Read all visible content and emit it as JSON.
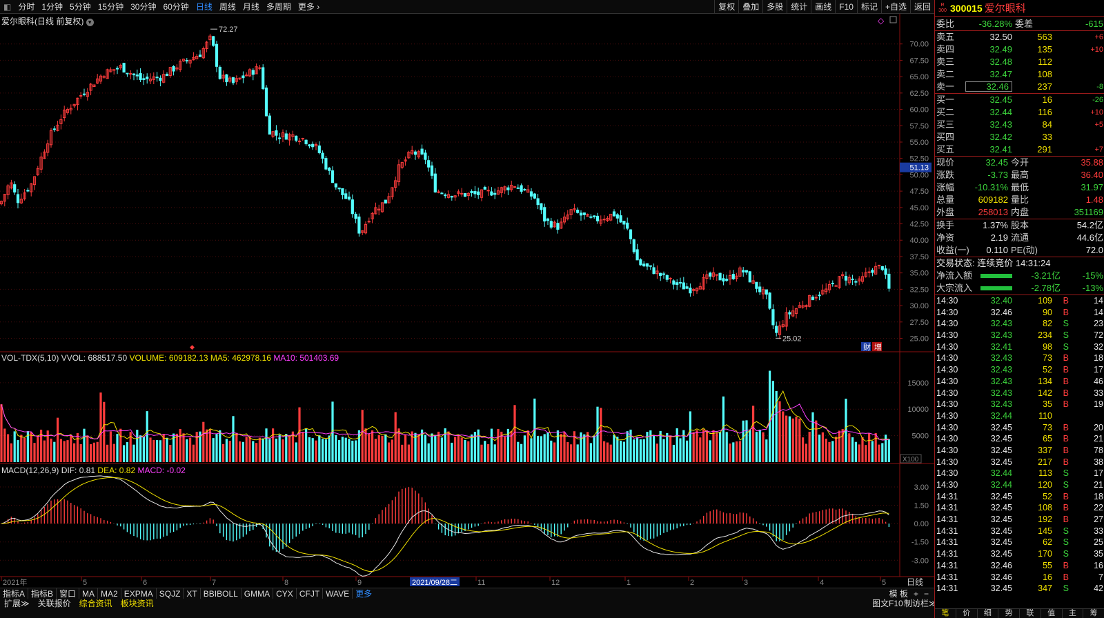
{
  "periods": [
    "分时",
    "1分钟",
    "5分钟",
    "15分钟",
    "30分钟",
    "60分钟",
    "日线",
    "周线",
    "月线",
    "多周期",
    "更多"
  ],
  "active_period": "日线",
  "tools": [
    "复权",
    "叠加",
    "多股",
    "统计",
    "画线",
    "F10",
    "标记",
    "+自选",
    "返回"
  ],
  "chart_title": "爱尔眼科(日线 前复权)",
  "price_axis": [
    "70.00",
    "67.50",
    "65.00",
    "62.50",
    "60.00",
    "57.50",
    "55.00",
    "52.50",
    "50.00",
    "47.50",
    "45.00",
    "42.50",
    "40.00",
    "37.50",
    "35.00",
    "32.50",
    "30.00",
    "27.50",
    "25.00"
  ],
  "current_marker": "51.13",
  "high_label": "72.27",
  "low_label": "25.02",
  "cai_zeng": [
    "财",
    "增"
  ],
  "vol_title": {
    "name": "VOL-TDX(5,10)",
    "vvol": "VVOL: 688517.50",
    "volume": "VOLUME: 609182.13",
    "ma5": "MA5: 462978.16",
    "ma10": "MA10: 501403.69"
  },
  "vol_axis": [
    "15000",
    "10000",
    "5000"
  ],
  "vol_unit": "X100",
  "macd_title": {
    "name": "MACD(12,26,9)",
    "dif": "DIF: 0.81",
    "dea": "DEA: 0.82",
    "macd": "MACD: -0.02"
  },
  "macd_axis": [
    "3.00",
    "1.50",
    "0.00",
    "-1.50",
    "-3.00"
  ],
  "date_axis": [
    "2021年",
    "5",
    "6",
    "7",
    "8",
    "9",
    "2021/09/28二",
    "11",
    "12",
    "1",
    "2",
    "3",
    "4",
    "5"
  ],
  "date_axis_right": "日线",
  "indicators": [
    "指标A",
    "指标B",
    "窗口",
    "MA",
    "MA2",
    "EXPMA",
    "SQJZ",
    "XT",
    "BBIBOLL",
    "GMMA",
    "CYX",
    "CFJT",
    "WAVE",
    "更多"
  ],
  "bottom_right": [
    "模 板",
    "+",
    "−"
  ],
  "bottom2": [
    "扩展≫",
    "关联报价",
    "综合资讯",
    "板块资讯",
    "图文F10",
    "制访栏≫"
  ],
  "quote": {
    "badge": "R 300",
    "code": "300015",
    "name": "爱尔眼科",
    "wei": {
      "l1": "委比",
      "v1": "-36.28%",
      "l2": "委差",
      "v2": "-615"
    },
    "asks": [
      [
        "卖五",
        "32.50",
        "563",
        "+6"
      ],
      [
        "卖四",
        "32.49",
        "135",
        "+10"
      ],
      [
        "卖三",
        "32.48",
        "112",
        ""
      ],
      [
        "卖二",
        "32.47",
        "108",
        ""
      ],
      [
        "卖一",
        "32.46",
        "237",
        "-8"
      ]
    ],
    "bids": [
      [
        "买一",
        "32.45",
        "16",
        "-26"
      ],
      [
        "买二",
        "32.44",
        "116",
        "+10"
      ],
      [
        "买三",
        "32.43",
        "84",
        "+5"
      ],
      [
        "买四",
        "32.42",
        "33",
        ""
      ],
      [
        "买五",
        "32.41",
        "291",
        "+7"
      ]
    ],
    "stats": [
      [
        "现价",
        "32.45",
        "今开",
        "35.88"
      ],
      [
        "涨跌",
        "-3.73",
        "最高",
        "36.40"
      ],
      [
        "涨幅",
        "-10.31%",
        "最低",
        "31.97"
      ],
      [
        "总量",
        "609182",
        "量比",
        "1.48"
      ],
      [
        "外盘",
        "258013",
        "内盘",
        "351169"
      ]
    ],
    "stats2": [
      [
        "换手",
        "1.37%",
        "股本",
        "54.2亿"
      ],
      [
        "净资",
        "2.19",
        "流通",
        "44.6亿"
      ],
      [
        "收益(一)",
        "0.110",
        "PE(动)",
        "72.0"
      ]
    ],
    "status": "交易状态: 连续竞价 14:31:24",
    "flows": [
      [
        "净流入额",
        "-3.21亿",
        "-15%"
      ],
      [
        "大宗流入",
        "-2.78亿",
        "-13%"
      ]
    ],
    "ticks": [
      [
        "14:30",
        "32.40",
        "109",
        "B",
        "14"
      ],
      [
        "14:30",
        "32.46",
        "90",
        "B",
        "14"
      ],
      [
        "14:30",
        "32.43",
        "82",
        "S",
        "23"
      ],
      [
        "14:30",
        "32.43",
        "234",
        "S",
        "72"
      ],
      [
        "14:30",
        "32.41",
        "98",
        "S",
        "32"
      ],
      [
        "14:30",
        "32.43",
        "73",
        "B",
        "18"
      ],
      [
        "14:30",
        "32.43",
        "52",
        "B",
        "17"
      ],
      [
        "14:30",
        "32.43",
        "134",
        "B",
        "46"
      ],
      [
        "14:30",
        "32.43",
        "142",
        "B",
        "33"
      ],
      [
        "14:30",
        "32.43",
        "35",
        "B",
        "19"
      ],
      [
        "14:30",
        "32.44",
        "110",
        "",
        ""
      ],
      [
        "14:30",
        "32.45",
        "73",
        "B",
        "20"
      ],
      [
        "14:30",
        "32.45",
        "65",
        "B",
        "21"
      ],
      [
        "14:30",
        "32.45",
        "337",
        "B",
        "78"
      ],
      [
        "14:30",
        "32.45",
        "217",
        "B",
        "38"
      ],
      [
        "14:30",
        "32.44",
        "113",
        "S",
        "17"
      ],
      [
        "14:30",
        "32.44",
        "120",
        "S",
        "21"
      ],
      [
        "14:31",
        "32.45",
        "52",
        "B",
        "18"
      ],
      [
        "14:31",
        "32.45",
        "108",
        "B",
        "22"
      ],
      [
        "14:31",
        "32.45",
        "192",
        "B",
        "27"
      ],
      [
        "14:31",
        "32.45",
        "145",
        "S",
        "33"
      ],
      [
        "14:31",
        "32.45",
        "62",
        "S",
        "25"
      ],
      [
        "14:31",
        "32.45",
        "170",
        "S",
        "35"
      ],
      [
        "14:31",
        "32.46",
        "55",
        "B",
        "16"
      ],
      [
        "14:31",
        "32.46",
        "16",
        "B",
        "7"
      ],
      [
        "14:31",
        "32.45",
        "347",
        "S",
        "42"
      ]
    ],
    "bottom_tabs": [
      "笔",
      "价",
      "细",
      "势",
      "联",
      "值",
      "主",
      "筹"
    ]
  },
  "colors": {
    "up": "#ff3c3c",
    "down": "#54ffff",
    "ma5": "#f0e000",
    "ma10": "#ff40ff",
    "dif": "#e6e6e6",
    "dea": "#f0e000",
    "active": "#2f8cff"
  }
}
